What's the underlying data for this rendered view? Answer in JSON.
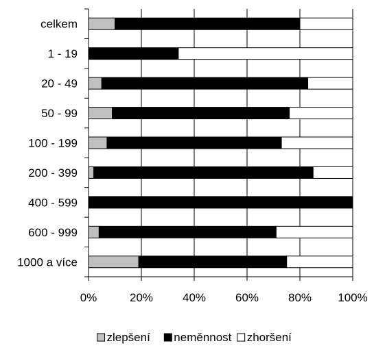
{
  "chart_data": {
    "type": "bar",
    "orientation": "horizontal",
    "stacked": true,
    "percent_stacked": true,
    "categories": [
      "celkem",
      "1 - 19",
      "20 - 49",
      "50 - 99",
      "100 - 199",
      "200 - 399",
      "400 - 599",
      "600 - 999",
      "1000 a více"
    ],
    "series": [
      {
        "name": "zlepšení",
        "color": "#c0c0c0",
        "values": [
          10,
          0,
          5,
          9,
          7,
          2,
          0,
          4,
          19
        ]
      },
      {
        "name": "neměnnost",
        "color": "#000000",
        "values": [
          70,
          34,
          78,
          67,
          66,
          83,
          100,
          67,
          56
        ]
      },
      {
        "name": "zhoršení",
        "color": "#ffffff",
        "values": [
          20,
          66,
          17,
          24,
          27,
          15,
          0,
          29,
          25
        ]
      }
    ],
    "xlim": [
      0,
      100
    ],
    "x_ticks": [
      "0%",
      "20%",
      "40%",
      "60%",
      "80%",
      "100%"
    ],
    "grid": "vertical",
    "legend": "bottom",
    "title": "",
    "xlabel": "",
    "ylabel": ""
  }
}
